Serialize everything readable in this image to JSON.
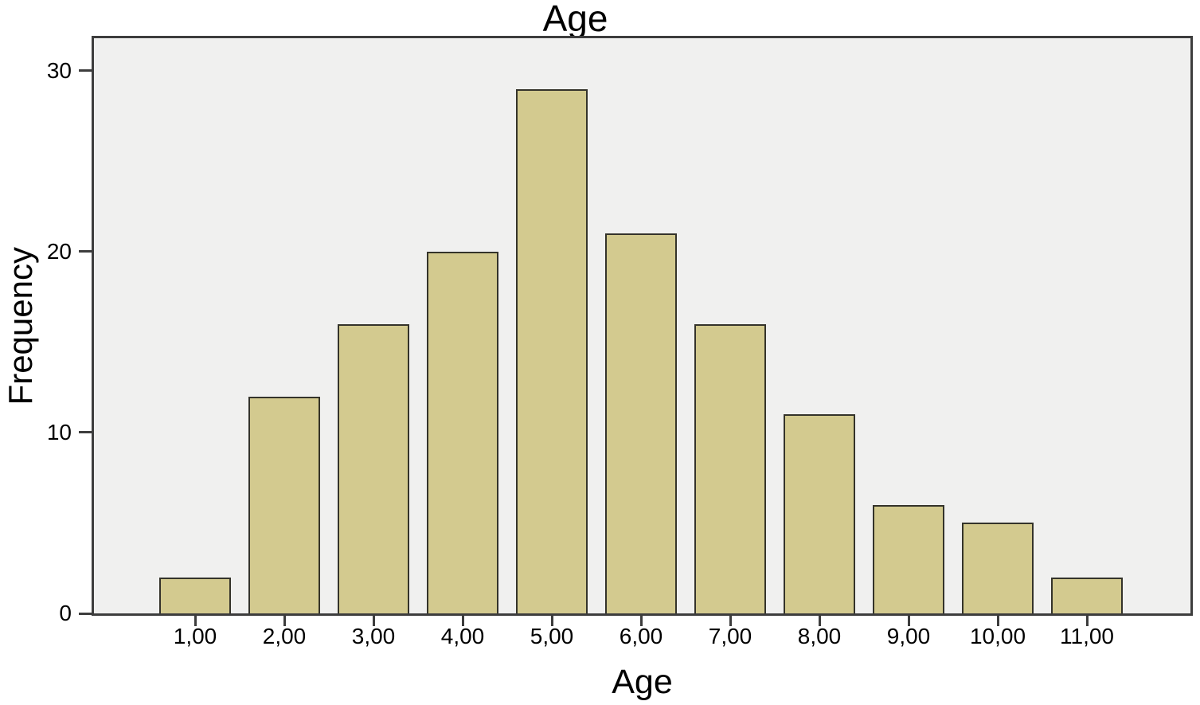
{
  "chart_data": {
    "type": "bar",
    "title": "Age",
    "xlabel": "Age",
    "ylabel": "Frequency",
    "categories": [
      "1,00",
      "2,00",
      "3,00",
      "4,00",
      "5,00",
      "6,00",
      "7,00",
      "8,00",
      "9,00",
      "10,00",
      "11,00"
    ],
    "values": [
      2,
      12,
      16,
      20,
      29,
      21,
      16,
      11,
      6,
      5,
      2
    ],
    "yticks": [
      0,
      10,
      20,
      30
    ],
    "ylim": [
      0,
      31.8
    ],
    "grid": false,
    "legend_position": "none",
    "colors": {
      "bar_fill": "#d3ca8f",
      "bar_border": "#34332a",
      "plot_bg": "#f0f0ef",
      "frame": "#3d3d3d",
      "text": "#000000"
    }
  }
}
